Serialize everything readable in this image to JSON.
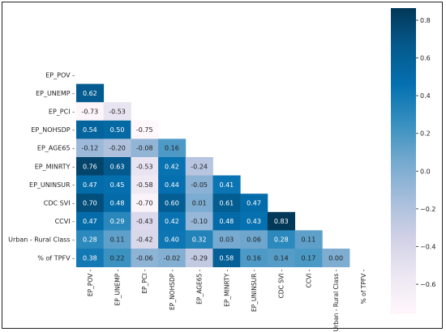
{
  "chart_data": {
    "type": "heatmap",
    "variables": [
      "EP_POV",
      "EP_UNEMP",
      "EP_PCI",
      "EP_NOHSDP",
      "EP_AGE65",
      "EP_MINRTY",
      "EP_UNINSUR",
      "CDC SVI",
      "CCVI",
      "Urban - Rural Class",
      "% of TPFV"
    ],
    "row_tick_labels": [
      "EP_POV -",
      "EP_UNEMP -",
      "EP_PCI -",
      "EP_NOHSDP -",
      "EP_AGE65 -",
      "EP_MINRTY -",
      "EP_UNINSUR -",
      "CDC SVI -",
      "CCVI -",
      "Urban - Rural Class -",
      "% of TPFV -"
    ],
    "col_tick_labels": [
      "EP_POV -",
      "EP_UNEMP -",
      "EP_PCI -",
      "EP_NOHSDP -",
      "EP_AGE65 -",
      "EP_MINRTY -",
      "EP_UNINSUR -",
      "CDC SVI -",
      "CCVI -",
      "Urban - Rural Class -",
      "% of TPFV -"
    ],
    "lower_triangle": [
      [],
      [
        0.62
      ],
      [
        -0.73,
        -0.53
      ],
      [
        0.54,
        0.5,
        -0.75
      ],
      [
        -0.12,
        -0.2,
        -0.08,
        0.16
      ],
      [
        0.76,
        0.63,
        -0.53,
        0.42,
        -0.24
      ],
      [
        0.47,
        0.45,
        -0.58,
        0.44,
        -0.05,
        0.41
      ],
      [
        0.7,
        0.48,
        -0.7,
        0.6,
        0.01,
        0.61,
        0.47
      ],
      [
        0.47,
        0.29,
        -0.43,
        0.42,
        -0.1,
        0.48,
        0.43,
        0.83
      ],
      [
        0.28,
        0.11,
        -0.42,
        0.4,
        0.32,
        0.03,
        0.06,
        0.28,
        0.11
      ],
      [
        0.38,
        0.22,
        -0.06,
        -0.02,
        -0.29,
        0.58,
        0.16,
        0.14,
        0.17,
        0.0
      ]
    ],
    "cell_labels": [
      [],
      [
        "0.62"
      ],
      [
        "-0.73",
        "-0.53"
      ],
      [
        "0.54",
        "0.50",
        "-0.75"
      ],
      [
        "-0.12",
        "-0.20",
        "-0.08",
        "0.16"
      ],
      [
        "0.76",
        "0.63",
        "-0.53",
        "0.42",
        "-0.24"
      ],
      [
        "0.47",
        "0.45",
        "-0.58",
        "0.44",
        "-0.05",
        "0.41"
      ],
      [
        "0.70",
        "0.48",
        "-0.70",
        "0.60",
        "0.01",
        "0.61",
        "0.47"
      ],
      [
        "0.47",
        "0.29",
        "-0.43",
        "0.42",
        "-0.10",
        "0.48",
        "0.43",
        "0.83"
      ],
      [
        "0.28",
        "0.11",
        "-0.42",
        "0.40",
        "0.32",
        "0.03",
        "0.06",
        "0.28",
        "0.11"
      ],
      [
        "0.38",
        "0.22",
        "-0.06",
        "-0.02",
        "-0.29",
        "0.58",
        "0.16",
        "0.14",
        "0.17",
        "0.00"
      ]
    ],
    "colorbar": {
      "min": -0.75,
      "max": 0.83,
      "ticks": [
        0.8,
        0.6,
        0.4,
        0.2,
        0.0,
        -0.2,
        -0.4,
        -0.6
      ],
      "tick_labels": [
        "0.8",
        "0.6",
        "0.4",
        "0.2",
        "0.0",
        "−0.2",
        "−0.4",
        "−0.6"
      ],
      "colormap": "PuBu",
      "colors": [
        "#fff7fb",
        "#ece7f2",
        "#d0d1e6",
        "#a6bddb",
        "#74a9cf",
        "#3690c0",
        "#0570b0",
        "#045a8d",
        "#023858"
      ]
    },
    "grid": false,
    "legend": "colorbar-right"
  }
}
